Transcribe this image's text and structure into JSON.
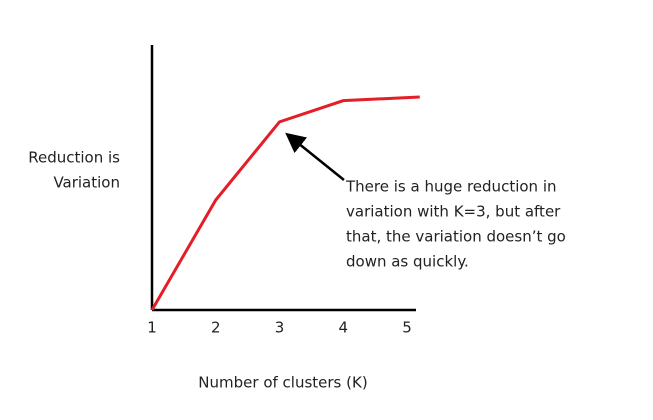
{
  "chart_data": {
    "type": "line",
    "x": [
      1,
      2,
      3,
      4,
      5.2
    ],
    "series": [
      {
        "name": null,
        "color": "#e41e26",
        "values": [
          0,
          41.5,
          71,
          79,
          80.4
        ]
      }
    ],
    "xlim": [
      1,
      5.2
    ],
    "xticks": [
      1,
      2,
      3,
      4,
      5
    ],
    "ylim": [
      0,
      100
    ],
    "ylabel": [
      "Reduction is",
      "Variation"
    ],
    "xlabel": "Number of clusters (K)",
    "annotation": [
      "There is a huge reduction in",
      "variation with K=3, but after",
      "that, the variation doesn’t go",
      "down as quickly."
    ]
  }
}
